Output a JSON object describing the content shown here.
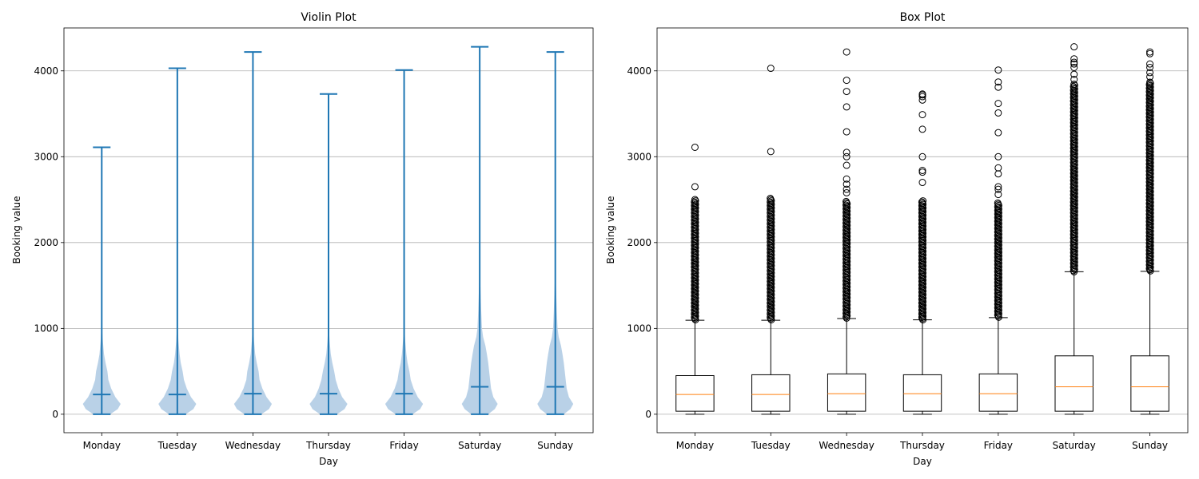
{
  "chart_data": [
    {
      "type": "violin",
      "title": "Violin Plot",
      "xlabel": "Day",
      "ylabel": "Booking value",
      "categories": [
        "Monday",
        "Tuesday",
        "Wednesday",
        "Thursday",
        "Friday",
        "Saturday",
        "Sunday"
      ],
      "yticks": [
        0,
        1000,
        2000,
        3000,
        4000
      ],
      "ylim": [
        -215,
        4500
      ],
      "grid": "y",
      "color": "#1f77b4",
      "body_color": "#b5cfe6",
      "series": [
        {
          "min": 0,
          "median": 230,
          "max": 3110,
          "density": [
            [
              0,
              0.45
            ],
            [
              60,
              0.85
            ],
            [
              120,
              1.0
            ],
            [
              200,
              0.72
            ],
            [
              300,
              0.5
            ],
            [
              400,
              0.35
            ],
            [
              500,
              0.3
            ],
            [
              600,
              0.2
            ],
            [
              700,
              0.12
            ],
            [
              850,
              0.06
            ],
            [
              1000,
              0.02
            ],
            [
              1050,
              0
            ]
          ]
        },
        {
          "min": 0,
          "median": 230,
          "max": 4030,
          "density": [
            [
              0,
              0.45
            ],
            [
              60,
              0.85
            ],
            [
              120,
              1.0
            ],
            [
              200,
              0.72
            ],
            [
              300,
              0.5
            ],
            [
              400,
              0.35
            ],
            [
              500,
              0.28
            ],
            [
              600,
              0.18
            ],
            [
              700,
              0.12
            ],
            [
              850,
              0.06
            ],
            [
              1000,
              0.02
            ],
            [
              1050,
              0
            ]
          ]
        },
        {
          "min": 0,
          "median": 240,
          "max": 4220,
          "density": [
            [
              0,
              0.45
            ],
            [
              60,
              0.85
            ],
            [
              120,
              1.0
            ],
            [
              200,
              0.72
            ],
            [
              300,
              0.5
            ],
            [
              400,
              0.35
            ],
            [
              500,
              0.3
            ],
            [
              600,
              0.2
            ],
            [
              700,
              0.12
            ],
            [
              850,
              0.06
            ],
            [
              1000,
              0.02
            ],
            [
              1050,
              0
            ]
          ]
        },
        {
          "min": 0,
          "median": 240,
          "max": 3730,
          "density": [
            [
              0,
              0.45
            ],
            [
              60,
              0.85
            ],
            [
              120,
              1.0
            ],
            [
              200,
              0.72
            ],
            [
              300,
              0.52
            ],
            [
              400,
              0.38
            ],
            [
              500,
              0.3
            ],
            [
              600,
              0.2
            ],
            [
              700,
              0.12
            ],
            [
              850,
              0.06
            ],
            [
              1000,
              0.02
            ],
            [
              1050,
              0
            ]
          ]
        },
        {
          "min": 0,
          "median": 240,
          "max": 4010,
          "density": [
            [
              0,
              0.45
            ],
            [
              60,
              0.85
            ],
            [
              120,
              1.0
            ],
            [
              200,
              0.72
            ],
            [
              300,
              0.5
            ],
            [
              400,
              0.35
            ],
            [
              500,
              0.28
            ],
            [
              600,
              0.18
            ],
            [
              700,
              0.12
            ],
            [
              850,
              0.06
            ],
            [
              1000,
              0.02
            ],
            [
              1050,
              0
            ]
          ]
        },
        {
          "min": 0,
          "median": 320,
          "max": 4280,
          "density": [
            [
              0,
              0.45
            ],
            [
              60,
              0.8
            ],
            [
              120,
              0.95
            ],
            [
              200,
              0.72
            ],
            [
              300,
              0.6
            ],
            [
              400,
              0.55
            ],
            [
              500,
              0.5
            ],
            [
              600,
              0.45
            ],
            [
              700,
              0.38
            ],
            [
              800,
              0.3
            ],
            [
              900,
              0.18
            ],
            [
              1000,
              0.12
            ],
            [
              1200,
              0.08
            ],
            [
              1400,
              0.05
            ],
            [
              1600,
              0.02
            ],
            [
              1700,
              0
            ]
          ]
        },
        {
          "min": 0,
          "median": 320,
          "max": 4220,
          "density": [
            [
              0,
              0.45
            ],
            [
              60,
              0.8
            ],
            [
              120,
              0.95
            ],
            [
              200,
              0.72
            ],
            [
              300,
              0.6
            ],
            [
              400,
              0.55
            ],
            [
              500,
              0.5
            ],
            [
              600,
              0.45
            ],
            [
              700,
              0.38
            ],
            [
              800,
              0.3
            ],
            [
              900,
              0.18
            ],
            [
              1000,
              0.12
            ],
            [
              1200,
              0.08
            ],
            [
              1400,
              0.05
            ],
            [
              1600,
              0.02
            ],
            [
              1700,
              0
            ]
          ]
        }
      ]
    },
    {
      "type": "box",
      "title": "Box Plot",
      "xlabel": "Day",
      "ylabel": "Booking value",
      "categories": [
        "Monday",
        "Tuesday",
        "Wednesday",
        "Thursday",
        "Friday",
        "Saturday",
        "Sunday"
      ],
      "yticks": [
        0,
        1000,
        2000,
        3000,
        4000
      ],
      "ylim": [
        -215,
        4500
      ],
      "grid": "y",
      "median_color": "#ff7f0e",
      "series": [
        {
          "whisker_low": 0,
          "q1": 35,
          "median": 230,
          "q3": 450,
          "whisker_high": 1095,
          "outlier_band": [
            1100,
            2500
          ],
          "outliers": [
            2650,
            3110
          ]
        },
        {
          "whisker_low": 0,
          "q1": 35,
          "median": 230,
          "q3": 460,
          "whisker_high": 1095,
          "outlier_band": [
            1100,
            2520
          ],
          "outliers": [
            3060,
            4030
          ]
        },
        {
          "whisker_low": 0,
          "q1": 35,
          "median": 240,
          "q3": 470,
          "whisker_high": 1115,
          "outlier_band": [
            1120,
            2480
          ],
          "outliers": [
            2580,
            2620,
            2680,
            2740,
            2900,
            3000,
            3050,
            3290,
            3580,
            3760,
            3890,
            4220
          ]
        },
        {
          "whisker_low": 0,
          "q1": 35,
          "median": 240,
          "q3": 460,
          "whisker_high": 1100,
          "outlier_band": [
            1100,
            2490
          ],
          "outliers": [
            2700,
            2820,
            2840,
            3000,
            3320,
            3490,
            3660,
            3700,
            3720,
            3730
          ]
        },
        {
          "whisker_low": 0,
          "q1": 35,
          "median": 240,
          "q3": 470,
          "whisker_high": 1125,
          "outlier_band": [
            1130,
            2470
          ],
          "outliers": [
            2560,
            2620,
            2650,
            2800,
            2870,
            3000,
            3280,
            3510,
            3620,
            3810,
            3870,
            4010
          ]
        },
        {
          "whisker_low": 0,
          "q1": 35,
          "median": 320,
          "q3": 680,
          "whisker_high": 1660,
          "outlier_band": [
            1660,
            3850
          ],
          "outliers": [
            3900,
            3960,
            4040,
            4080,
            4100,
            4140,
            4280
          ]
        },
        {
          "whisker_low": 0,
          "q1": 35,
          "median": 320,
          "q3": 680,
          "whisker_high": 1665,
          "outlier_band": [
            1670,
            3880
          ],
          "outliers": [
            3930,
            3980,
            4040,
            4080,
            4200,
            4220
          ]
        }
      ]
    }
  ]
}
